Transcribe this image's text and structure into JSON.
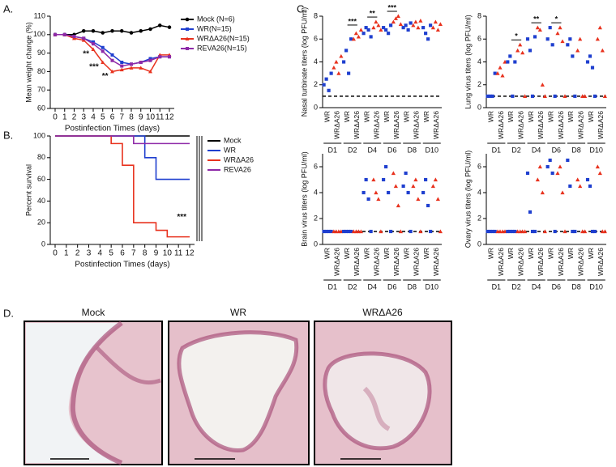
{
  "panel_labels": [
    "A.",
    "B.",
    "C.",
    "D."
  ],
  "chart_data": [
    {
      "type": "line",
      "xlabel": "Postinfection Times (days)",
      "ylabel": "Mean weight change (%)",
      "x": [
        0,
        1,
        2,
        3,
        4,
        5,
        6,
        7,
        8,
        9,
        10,
        11,
        12
      ],
      "xlim": [
        0,
        12
      ],
      "xticks": [
        0,
        1,
        2,
        3,
        4,
        5,
        6,
        7,
        8,
        9,
        10,
        11,
        12
      ],
      "ylim": [
        60,
        110
      ],
      "yticks": [
        60,
        70,
        80,
        90,
        100,
        110
      ],
      "series": [
        {
          "name": "Mock (N=6)",
          "color": "#000000",
          "values": [
            100,
            100,
            100,
            102,
            102,
            101,
            102,
            102,
            101,
            102,
            103,
            105,
            104
          ]
        },
        {
          "name": "WR(N=15)",
          "color": "#1f3fcf",
          "values": [
            100,
            100,
            99,
            98,
            96,
            93,
            89,
            85,
            84,
            85,
            87,
            88,
            88
          ]
        },
        {
          "name": "WRΔA26(N=15)",
          "color": "#e8321e",
          "values": [
            100,
            100,
            98,
            97,
            92,
            85,
            80,
            81,
            82,
            82,
            80,
            89,
            89
          ]
        },
        {
          "name": "REVA26(N=15)",
          "color": "#8e2aa8",
          "values": [
            100,
            100,
            99,
            98,
            95,
            91,
            86,
            83,
            84,
            85,
            86,
            88,
            88
          ]
        }
      ],
      "annotations": [
        {
          "text": "**",
          "x": 4
        },
        {
          "text": "***",
          "x": 5
        },
        {
          "text": "**",
          "x": 6
        }
      ]
    },
    {
      "type": "survival",
      "xlabel": "Postinfection Times (days)",
      "ylabel": "Percent survival",
      "x": [
        0,
        1,
        2,
        3,
        4,
        5,
        6,
        7,
        8,
        9,
        10,
        11,
        12
      ],
      "xlim": [
        0,
        12
      ],
      "xticks": [
        0,
        1,
        2,
        3,
        4,
        5,
        6,
        7,
        8,
        9,
        10,
        11,
        12
      ],
      "ylim": [
        0,
        100
      ],
      "yticks": [
        0,
        20,
        40,
        60,
        80,
        100
      ],
      "series": [
        {
          "name": "Mock",
          "color": "#000000",
          "values": [
            100,
            100,
            100,
            100,
            100,
            100,
            100,
            100,
            100,
            100,
            100,
            100,
            100
          ]
        },
        {
          "name": "WR",
          "color": "#1f3fcf",
          "values": [
            100,
            100,
            100,
            100,
            100,
            100,
            100,
            100,
            80,
            60,
            60,
            60,
            60
          ]
        },
        {
          "name": "WRΔA26",
          "color": "#e8321e",
          "values": [
            100,
            100,
            100,
            100,
            100,
            93,
            73,
            20,
            20,
            13,
            7,
            7,
            7
          ]
        },
        {
          "name": "REVA26",
          "color": "#8e2aa8",
          "values": [
            100,
            100,
            100,
            100,
            100,
            100,
            100,
            93,
            93,
            93,
            93,
            93,
            93
          ]
        }
      ],
      "annotations": [
        {
          "text": "***",
          "x": 12
        }
      ]
    },
    {
      "type": "dotplot",
      "ylabel": "Nasal turbinate titers (log PFU/ml)",
      "ylim": [
        0,
        8
      ],
      "yticks": [
        0,
        2,
        4,
        6,
        8
      ],
      "threshold": 1,
      "colors": [
        "#1f3fcf",
        "#e8321e"
      ],
      "markers": [
        "square",
        "triangle"
      ],
      "categories": [
        "WR",
        "WRΔA26",
        "WR",
        "WRΔA26",
        "WR",
        "WRΔA26",
        "WR",
        "WRΔA26",
        "WR",
        "WRΔA26",
        "WR",
        "WRΔA26"
      ],
      "groups": [
        "D1",
        "D2",
        "D4",
        "D6",
        "D8",
        "D10"
      ],
      "values": [
        [
          2,
          2.5,
          1.5,
          3
        ],
        [
          3.5,
          4,
          3,
          4.5
        ],
        [
          4,
          5,
          3,
          6
        ],
        [
          6,
          6.5,
          6.2,
          6.8
        ],
        [
          6.5,
          7,
          6.8,
          6.2
        ],
        [
          7,
          7.5,
          7.2,
          6.8
        ],
        [
          7,
          6.8,
          6.5,
          7.2
        ],
        [
          7.5,
          7.8,
          8,
          7.3
        ],
        [
          7,
          7.2,
          6.8,
          7.4
        ],
        [
          7.2,
          7.5,
          7,
          7.6
        ],
        [
          7,
          6.5,
          6,
          7.2
        ],
        [
          7,
          7.5,
          6.8,
          7.3
        ]
      ],
      "annotations": [
        {
          "text": "***",
          "group": 1
        },
        {
          "text": "**",
          "group": 2
        },
        {
          "text": "***",
          "group": 3
        }
      ]
    },
    {
      "type": "dotplot",
      "ylabel": "Lung virus titers (log PFU/ml)",
      "ylim": [
        0,
        8
      ],
      "yticks": [
        0,
        2,
        4,
        6,
        8
      ],
      "threshold": 1,
      "colors": [
        "#1f3fcf",
        "#e8321e"
      ],
      "markers": [
        "square",
        "triangle"
      ],
      "categories": [
        "WR",
        "WRΔA26",
        "WR",
        "WRΔA26",
        "WR",
        "WRΔA26",
        "WR",
        "WRΔA26",
        "WR",
        "WRΔA26",
        "WR",
        "WRΔA26"
      ],
      "groups": [
        "D1",
        "D2",
        "D4",
        "D6",
        "D8",
        "D10"
      ],
      "values": [
        [
          1,
          1,
          1,
          3
        ],
        [
          3,
          3.5,
          2.8,
          4
        ],
        [
          4,
          4.5,
          1,
          4
        ],
        [
          5,
          5.5,
          4.8,
          1
        ],
        [
          6,
          5,
          1,
          6.2
        ],
        [
          7,
          6.8,
          2,
          1
        ],
        [
          6,
          7,
          5.5,
          1
        ],
        [
          6.5,
          7,
          5.8,
          1
        ],
        [
          5.5,
          6,
          4.5,
          1
        ],
        [
          5,
          6,
          1,
          1
        ],
        [
          4,
          4.5,
          3.5,
          1
        ],
        [
          6,
          7,
          5,
          1
        ]
      ],
      "annotations": [
        {
          "text": "*",
          "group": 1
        },
        {
          "text": "**",
          "group": 2
        },
        {
          "text": "*",
          "group": 3
        }
      ]
    },
    {
      "type": "dotplot",
      "ylabel": "Brain virus titers (log PFU/ml)",
      "ylim": [
        0,
        7
      ],
      "yticks": [
        0,
        2,
        4,
        6
      ],
      "threshold": 1,
      "colors": [
        "#1f3fcf",
        "#e8321e"
      ],
      "markers": [
        "square",
        "triangle"
      ],
      "categories": [
        "WR",
        "WRΔA26",
        "WR",
        "WRΔA26",
        "WR",
        "WRΔA26",
        "WR",
        "WRΔA26",
        "WR",
        "WRΔA26",
        "WR",
        "WRΔA26"
      ],
      "groups": [
        "D1",
        "D2",
        "D4",
        "D6",
        "D8",
        "D10"
      ],
      "values": [
        [
          1,
          1,
          1,
          1
        ],
        [
          1,
          1,
          1,
          1
        ],
        [
          1,
          1,
          1,
          1
        ],
        [
          1,
          1,
          1,
          1
        ],
        [
          4,
          5,
          3.5,
          1
        ],
        [
          5,
          4,
          3.5,
          1
        ],
        [
          5,
          6,
          4,
          1
        ],
        [
          5.5,
          4.5,
          3,
          1
        ],
        [
          4.5,
          5.5,
          4,
          1
        ],
        [
          4.5,
          5,
          3.5,
          1
        ],
        [
          4,
          5,
          3,
          1
        ],
        [
          4.5,
          5,
          3.5,
          1
        ]
      ],
      "annotations": []
    },
    {
      "type": "dotplot",
      "ylabel": "Ovary virus titers (log PFU/ml)",
      "ylim": [
        0,
        7
      ],
      "yticks": [
        0,
        2,
        4,
        6
      ],
      "threshold": 1,
      "colors": [
        "#1f3fcf",
        "#e8321e"
      ],
      "markers": [
        "square",
        "triangle"
      ],
      "categories": [
        "WR",
        "WRΔA26",
        "WR",
        "WRΔA26",
        "WR",
        "WRΔA26",
        "WR",
        "WRΔA26",
        "WR",
        "WRΔA26",
        "WR",
        "WRΔA26"
      ],
      "groups": [
        "D1",
        "D2",
        "D4",
        "D6",
        "D8",
        "D10"
      ],
      "values": [
        [
          1,
          1,
          1,
          1
        ],
        [
          1,
          1,
          1,
          1
        ],
        [
          1,
          1,
          1,
          1
        ],
        [
          1,
          1,
          1,
          1
        ],
        [
          5.5,
          2.5,
          1,
          1
        ],
        [
          5,
          6,
          4,
          1
        ],
        [
          6,
          6.5,
          5.5,
          1
        ],
        [
          5.5,
          6,
          4,
          1
        ],
        [
          6.5,
          4.5,
          1,
          1
        ],
        [
          5,
          4.5,
          1,
          1
        ],
        [
          5,
          4.5,
          1,
          1
        ],
        [
          6,
          5.5,
          1,
          1
        ]
      ],
      "annotations": []
    }
  ],
  "histology": {
    "titles": [
      "Mock",
      "WR",
      "WRΔA26"
    ]
  }
}
